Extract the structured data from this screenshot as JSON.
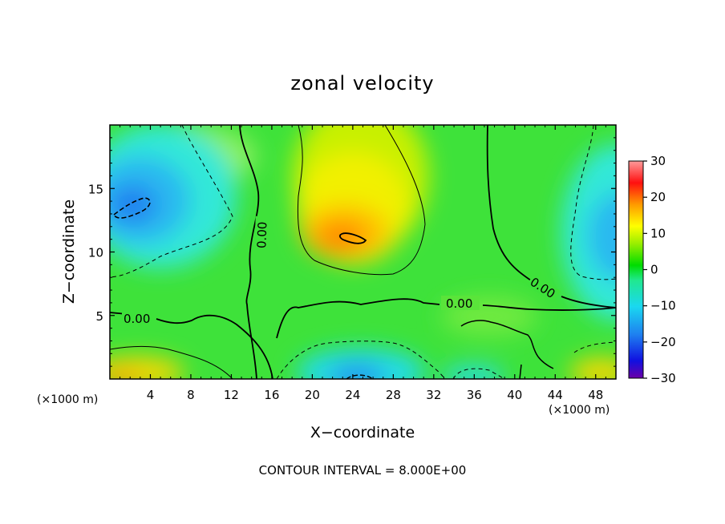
{
  "chart_data": {
    "type": "heatmap",
    "title": "zonal velocity",
    "xlabel": "X−coordinate",
    "ylabel": "Z−coordinate",
    "x_unit_left": "(×1000 m)",
    "x_unit_right": "(×1000 m)",
    "xlim": [
      0,
      50
    ],
    "ylim": [
      0,
      20
    ],
    "x_ticks": [
      4,
      8,
      12,
      16,
      20,
      24,
      28,
      32,
      36,
      40,
      44,
      48
    ],
    "x_tick_labels": [
      "4",
      "8",
      "12",
      "16",
      "20",
      "24",
      "28",
      "32",
      "36",
      "40",
      "44",
      "48"
    ],
    "y_ticks": [
      5,
      10,
      15
    ],
    "y_tick_labels": [
      "5",
      "10",
      "15"
    ],
    "colorbar": {
      "min": -30,
      "max": 30,
      "ticks": [
        30,
        20,
        10,
        0,
        -10,
        -20,
        -30
      ],
      "tick_labels": [
        "30",
        "20",
        "10",
        "0",
        "−10",
        "−20",
        "−30"
      ]
    },
    "contour_interval_text": "CONTOUR INTERVAL = 8.000E+00",
    "contour_labels": [
      "0.00",
      "0.00",
      "0.00",
      "0.00"
    ],
    "features": [
      {
        "x": 25,
        "z": 11,
        "value": 14
      },
      {
        "x": 4,
        "z": 14,
        "value": -12
      },
      {
        "x": 50,
        "z": 11,
        "value": -10
      },
      {
        "x": 24,
        "z": 0.5,
        "value": -12
      },
      {
        "x": 2,
        "z": 0.5,
        "value": 10
      },
      {
        "x": 49,
        "z": 0.5,
        "value": 10
      }
    ]
  }
}
